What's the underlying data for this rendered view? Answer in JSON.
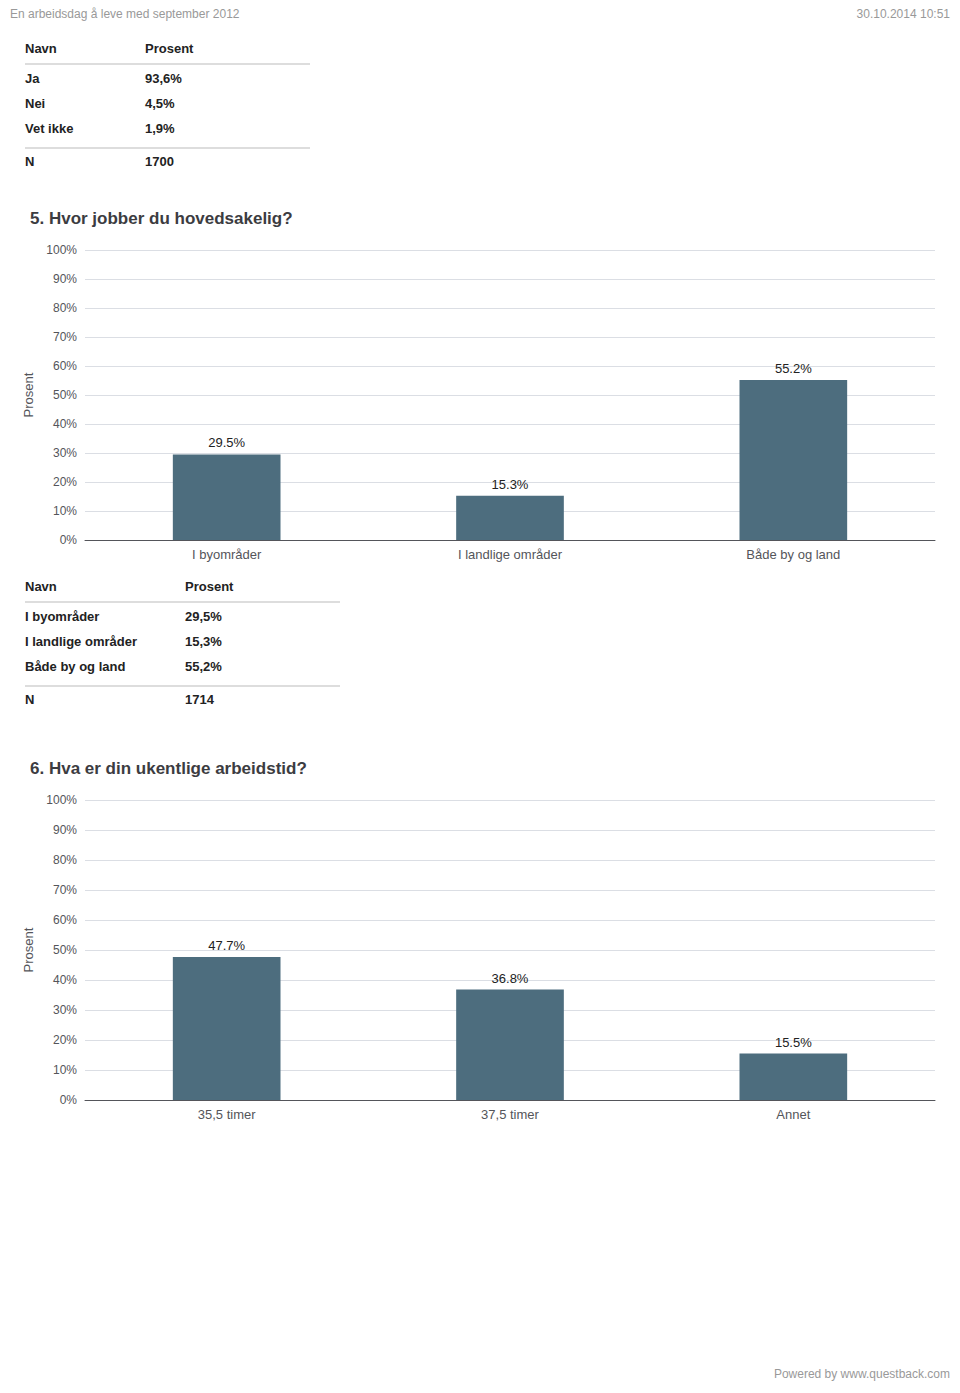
{
  "annotations": [
    "En arbeidsdag å leve med september 2012",
    "30.10.2014 10:51",
    "Powered by www.questback.com"
  ],
  "chart_data": [
    {
      "type": "table",
      "columns": [
        "Navn",
        "Prosent"
      ],
      "rows": [
        [
          "Ja",
          "93,6%"
        ],
        [
          "Nei",
          "4,5%"
        ],
        [
          "Vet ikke",
          "1,9%"
        ],
        [
          "N",
          "1700"
        ]
      ]
    },
    {
      "type": "bar",
      "title": "5. Hvor jobber du hovedsakelig?",
      "categories": [
        "I byområder",
        "I landlige områder",
        "Både by og land"
      ],
      "values": [
        29.5,
        15.3,
        55.2
      ],
      "value_labels": [
        "29.5%",
        "15.3%",
        "55.2%"
      ],
      "data_labels": true,
      "color": "#4d6d7e",
      "ylabel": "Prosent",
      "ylim": [
        0,
        100
      ],
      "yticks": [
        {
          "value": 0,
          "label": "0%"
        },
        {
          "value": 10,
          "label": "10%"
        },
        {
          "value": 20,
          "label": "20%"
        },
        {
          "value": 30,
          "label": "30%"
        },
        {
          "value": 40,
          "label": "40%"
        },
        {
          "value": 50,
          "label": "50%"
        },
        {
          "value": 60,
          "label": "60%"
        },
        {
          "value": 70,
          "label": "70%"
        },
        {
          "value": 80,
          "label": "80%"
        },
        {
          "value": 90,
          "label": "90%"
        },
        {
          "value": 100,
          "label": "100%"
        }
      ],
      "grid": true
    },
    {
      "type": "table",
      "columns": [
        "Navn",
        "Prosent"
      ],
      "rows": [
        [
          "I byområder",
          "29,5%"
        ],
        [
          "I landlige områder",
          "15,3%"
        ],
        [
          "Både by og land",
          "55,2%"
        ],
        [
          "N",
          "1714"
        ]
      ]
    },
    {
      "type": "bar",
      "title": "6. Hva er din ukentlige arbeidstid?",
      "categories": [
        "35,5 timer",
        "37,5 timer",
        "Annet"
      ],
      "values": [
        47.7,
        36.8,
        15.5
      ],
      "value_labels": [
        "47.7%",
        "36.8%",
        "15.5%"
      ],
      "data_labels": true,
      "color": "#4d6d7e",
      "ylabel": "Prosent",
      "ylim": [
        0,
        100
      ],
      "yticks": [
        {
          "value": 0,
          "label": "0%"
        },
        {
          "value": 10,
          "label": "10%"
        },
        {
          "value": 20,
          "label": "20%"
        },
        {
          "value": 30,
          "label": "30%"
        },
        {
          "value": 40,
          "label": "40%"
        },
        {
          "value": 50,
          "label": "50%"
        },
        {
          "value": 60,
          "label": "60%"
        },
        {
          "value": 70,
          "label": "70%"
        },
        {
          "value": 80,
          "label": "80%"
        },
        {
          "value": 90,
          "label": "90%"
        },
        {
          "value": 100,
          "label": "100%"
        }
      ],
      "grid": true
    }
  ]
}
